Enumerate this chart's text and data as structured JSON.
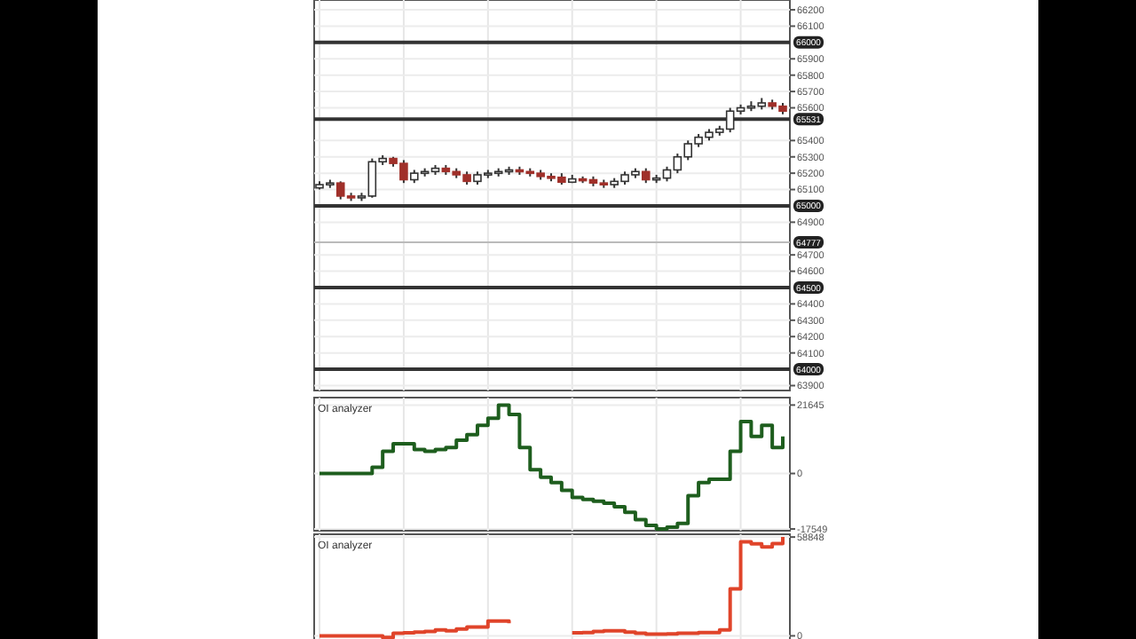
{
  "chart_data": [
    {
      "type": "candlestick",
      "categories": [
        null,
        null,
        null,
        null,
        null,
        null,
        null,
        null,
        null,
        null,
        null,
        null,
        null,
        null,
        null,
        null,
        null,
        null,
        null,
        null,
        null,
        null,
        null,
        null,
        null,
        null,
        null,
        null,
        null,
        null,
        null,
        null,
        null,
        null,
        null,
        null,
        null,
        null,
        null,
        null,
        null,
        null,
        null,
        null,
        null
      ],
      "ohlc": [
        [
          65110,
          65150,
          65100,
          65130
        ],
        [
          65130,
          65160,
          65110,
          65140
        ],
        [
          65140,
          65150,
          65040,
          65060
        ],
        [
          65060,
          65080,
          65030,
          65050
        ],
        [
          65050,
          65080,
          65030,
          65060
        ],
        [
          65060,
          65290,
          65050,
          65270
        ],
        [
          65270,
          65310,
          65250,
          65290
        ],
        [
          65290,
          65300,
          65240,
          65260
        ],
        [
          65260,
          65280,
          65140,
          65160
        ],
        [
          65160,
          65220,
          65140,
          65200
        ],
        [
          65200,
          65230,
          65180,
          65210
        ],
        [
          65210,
          65250,
          65190,
          65230
        ],
        [
          65230,
          65250,
          65190,
          65210
        ],
        [
          65210,
          65230,
          65170,
          65190
        ],
        [
          65190,
          65210,
          65130,
          65150
        ],
        [
          65150,
          65210,
          65130,
          65190
        ],
        [
          65190,
          65220,
          65170,
          65200
        ],
        [
          65200,
          65230,
          65180,
          65210
        ],
        [
          65210,
          65240,
          65190,
          65220
        ],
        [
          65220,
          65240,
          65190,
          65210
        ],
        [
          65210,
          65230,
          65180,
          65200
        ],
        [
          65200,
          65220,
          65160,
          65180
        ],
        [
          65180,
          65200,
          65150,
          65175
        ],
        [
          65175,
          65200,
          65130,
          65145
        ],
        [
          65145,
          65190,
          65140,
          65165
        ],
        [
          65165,
          65180,
          65140,
          65160
        ],
        [
          65160,
          65180,
          65120,
          65140
        ],
        [
          65140,
          65160,
          65110,
          65130
        ],
        [
          65130,
          65170,
          65110,
          65150
        ],
        [
          65150,
          65210,
          65130,
          65190
        ],
        [
          65190,
          65230,
          65170,
          65210
        ],
        [
          65210,
          65230,
          65140,
          65160
        ],
        [
          65160,
          65190,
          65140,
          65170
        ],
        [
          65170,
          65240,
          65150,
          65220
        ],
        [
          65220,
          65320,
          65200,
          65300
        ],
        [
          65300,
          65400,
          65280,
          65380
        ],
        [
          65380,
          65440,
          65360,
          65420
        ],
        [
          65420,
          65470,
          65400,
          65450
        ],
        [
          65450,
          65490,
          65430,
          65470
        ],
        [
          65470,
          65600,
          65450,
          65580
        ],
        [
          65580,
          65620,
          65560,
          65600
        ],
        [
          65600,
          65640,
          65580,
          65610
        ],
        [
          65610,
          65660,
          65590,
          65630
        ],
        [
          65630,
          65650,
          65590,
          65610
        ],
        [
          65610,
          65630,
          65560,
          65580
        ]
      ],
      "ylim": [
        63870,
        66260
      ],
      "yticks": [
        66200,
        66100,
        65900,
        65800,
        65700,
        65600,
        65400,
        65300,
        65200,
        65100,
        64900,
        64700,
        64600,
        64400,
        64300,
        64200,
        64100,
        63900
      ],
      "grid": true,
      "ref_lines": [
        {
          "axis": "y",
          "value": 66000,
          "label": "66000",
          "color": "#333333"
        },
        {
          "axis": "y",
          "value": 65531,
          "label": "65531",
          "color": "#333333"
        },
        {
          "axis": "y",
          "value": 65000,
          "label": "65000",
          "color": "#333333"
        },
        {
          "axis": "y",
          "value": 64777,
          "label": "64777",
          "color": "#bbbbbb"
        },
        {
          "axis": "y",
          "value": 64500,
          "label": "64500",
          "color": "#333333"
        },
        {
          "axis": "y",
          "value": 64000,
          "label": "64000",
          "color": "#333333"
        }
      ]
    },
    {
      "type": "step",
      "title": "OI analyzer",
      "categories": [
        null,
        null,
        null,
        null,
        null,
        null,
        null,
        null,
        null,
        null,
        null,
        null,
        null,
        null,
        null,
        null,
        null,
        null,
        null,
        null,
        null,
        null,
        null,
        null,
        null,
        null,
        null,
        null,
        null,
        null,
        null,
        null,
        null,
        null,
        null,
        null,
        null,
        null,
        null,
        null,
        null,
        null,
        null,
        null,
        null
      ],
      "series": [
        {
          "color": "#1e5e1e",
          "values": [
            0,
            0,
            0,
            0,
            0,
            2000,
            7000,
            9400,
            9400,
            7600,
            7000,
            7600,
            8200,
            10500,
            12300,
            15200,
            17500,
            21645,
            18700,
            8200,
            1200,
            -1200,
            -2900,
            -5300,
            -7600,
            -8200,
            -8800,
            -9400,
            -10500,
            -12300,
            -14600,
            -16400,
            -17549,
            -17000,
            -15800,
            -7000,
            -2900,
            -1800,
            -1800,
            7000,
            16400,
            11700,
            15200,
            8200,
            11700
          ]
        }
      ],
      "ylim": [
        -18100,
        24000
      ],
      "yticks": [
        21645,
        0,
        -17549
      ],
      "grid": true
    },
    {
      "type": "step",
      "title": "OI analyzer",
      "categories": [
        null,
        null,
        null,
        null,
        null,
        null,
        null,
        null,
        null,
        null,
        null,
        null,
        null,
        null,
        null,
        null,
        null,
        null,
        null,
        null,
        null,
        null,
        null,
        null,
        null,
        null,
        null,
        null,
        null,
        null,
        null,
        null,
        null,
        null,
        null,
        null,
        null,
        null,
        null,
        null,
        null,
        null,
        null,
        null,
        null
      ],
      "series": [
        {
          "color": "#e0442a",
          "values": [
            0,
            0,
            0,
            0,
            0,
            0,
            -1000,
            1500,
            1800,
            2200,
            2600,
            3500,
            3000,
            4000,
            5300,
            5300,
            8800,
            8800,
            7500,
            null,
            null,
            null,
            null,
            null,
            1800,
            2000,
            2600,
            3000,
            3000,
            2200,
            1500,
            1000,
            1000,
            1200,
            1500,
            1500,
            2000,
            2000,
            3500,
            28000,
            56000,
            54800,
            53000,
            55000,
            58848
          ]
        }
      ],
      "ylim": [
        -4000,
        60500
      ],
      "yticks": [
        58848,
        0
      ],
      "grid": true
    }
  ]
}
